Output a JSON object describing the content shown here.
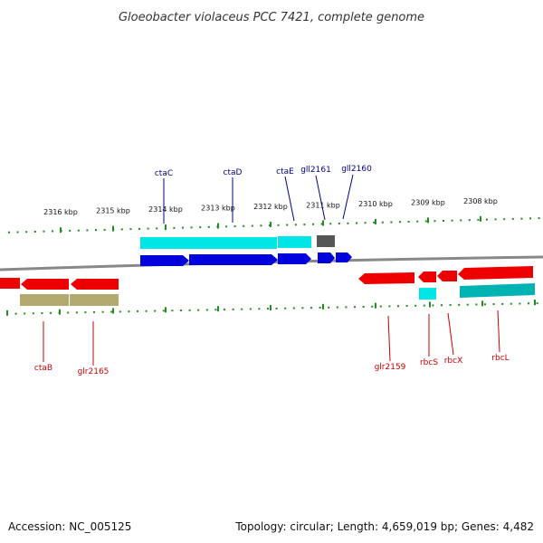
{
  "title": "Gloeobacter violaceus PCC 7421, complete genome",
  "footer": {
    "accession": "Accession: NC_005125",
    "topology": "Topology: circular; Length: 4,659,019 bp; Genes: 4,482"
  },
  "colors": {
    "forward_gene": "#0000dd",
    "reverse_gene": "#ee0000",
    "cds_forward": "#00e5e5",
    "cds_reverse": "#00b3b3",
    "other_feature": "#b3aa70",
    "pseudo": "#555555",
    "top_label": "#00008b",
    "bottom_label": "#cc0000",
    "ruler": "#228b22",
    "backbone": "#888888"
  },
  "ruler_top": [
    {
      "label": "2316 kbp"
    },
    {
      "label": "2315 kbp"
    },
    {
      "label": "2314 kbp"
    },
    {
      "label": "2313 kbp"
    },
    {
      "label": "2312 kbp"
    },
    {
      "label": "2311 kbp"
    },
    {
      "label": "2310 kbp"
    },
    {
      "label": "2309 kbp"
    },
    {
      "label": "2308 kbp"
    }
  ],
  "genes_top": [
    {
      "name": "ctaC",
      "strand": "+"
    },
    {
      "name": "ctaD",
      "strand": "+"
    },
    {
      "name": "ctaE",
      "strand": "+"
    },
    {
      "name": "gll2161",
      "strand": "+"
    },
    {
      "name": "gll2160",
      "strand": "+"
    }
  ],
  "genes_bottom": [
    {
      "name": "ctaB",
      "strand": "-"
    },
    {
      "name": "glr2165",
      "strand": "-"
    },
    {
      "name": "glr2159",
      "strand": "-"
    },
    {
      "name": "rbcS",
      "strand": "-"
    },
    {
      "name": "rbcX",
      "strand": "-"
    },
    {
      "name": "rbcL",
      "strand": "-"
    }
  ]
}
